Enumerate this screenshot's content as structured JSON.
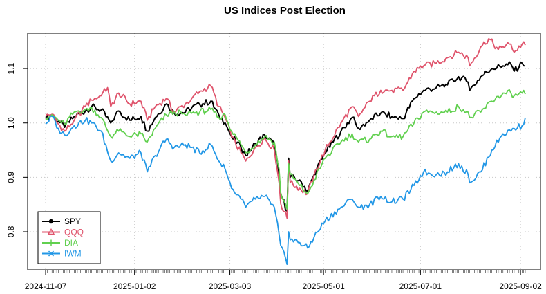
{
  "chart_data": {
    "type": "line",
    "title": "US Indices Post Election",
    "xlabel": "",
    "ylabel": "",
    "x_range": [
      "2024-11-07",
      "2025-09-05"
    ],
    "ylim": [
      0.73,
      1.165
    ],
    "x_ticks": [
      "2024-11-07",
      "2025-01-02",
      "2025-03-03",
      "2025-05-01",
      "2025-07-01",
      "2025-09-02"
    ],
    "y_ticks": [
      0.8,
      0.9,
      1.0,
      1.1
    ],
    "y_tick_labels": [
      "0.8",
      "0.9",
      "1.0",
      "1.1"
    ],
    "grid": true,
    "legend_position": "bottom-left",
    "series": [
      {
        "name": "SPY",
        "color": "#000000",
        "marker": "circle",
        "points": [
          [
            "2024-11-07",
            1.008
          ],
          [
            "2024-11-11",
            1.014
          ],
          [
            "2024-11-15",
            1.003
          ],
          [
            "2024-11-19",
            0.992
          ],
          [
            "2024-11-25",
            1.012
          ],
          [
            "2024-12-02",
            1.022
          ],
          [
            "2024-12-06",
            1.03
          ],
          [
            "2024-12-12",
            1.024
          ],
          [
            "2024-12-18",
            1.0
          ],
          [
            "2024-12-23",
            1.022
          ],
          [
            "2024-12-30",
            1.005
          ],
          [
            "2025-01-06",
            1.012
          ],
          [
            "2025-01-10",
            0.985
          ],
          [
            "2025-01-15",
            1.01
          ],
          [
            "2025-01-22",
            1.035
          ],
          [
            "2025-01-27",
            1.018
          ],
          [
            "2025-02-03",
            1.02
          ],
          [
            "2025-02-07",
            1.028
          ],
          [
            "2025-02-12",
            1.034
          ],
          [
            "2025-02-19",
            1.04
          ],
          [
            "2025-02-24",
            1.015
          ],
          [
            "2025-02-28",
            1.0
          ],
          [
            "2025-03-04",
            0.975
          ],
          [
            "2025-03-10",
            0.955
          ],
          [
            "2025-03-13",
            0.94
          ],
          [
            "2025-03-19",
            0.962
          ],
          [
            "2025-03-25",
            0.978
          ],
          [
            "2025-03-31",
            0.96
          ],
          [
            "2025-04-03",
            0.905
          ],
          [
            "2025-04-04",
            0.87
          ],
          [
            "2025-04-08",
            0.838
          ],
          [
            "2025-04-09",
            0.935
          ],
          [
            "2025-04-10",
            0.9
          ],
          [
            "2025-04-16",
            0.895
          ],
          [
            "2025-04-21",
            0.875
          ],
          [
            "2025-04-25",
            0.905
          ],
          [
            "2025-05-02",
            0.945
          ],
          [
            "2025-05-12",
            0.985
          ],
          [
            "2025-05-19",
            1.01
          ],
          [
            "2025-05-23",
            0.99
          ],
          [
            "2025-05-30",
            1.005
          ],
          [
            "2025-06-06",
            1.018
          ],
          [
            "2025-06-13",
            1.012
          ],
          [
            "2025-06-20",
            1.008
          ],
          [
            "2025-06-27",
            1.045
          ],
          [
            "2025-07-03",
            1.06
          ],
          [
            "2025-07-11",
            1.065
          ],
          [
            "2025-07-18",
            1.07
          ],
          [
            "2025-07-25",
            1.085
          ],
          [
            "2025-07-31",
            1.075
          ],
          [
            "2025-08-01",
            1.06
          ],
          [
            "2025-08-08",
            1.085
          ],
          [
            "2025-08-15",
            1.1
          ],
          [
            "2025-08-22",
            1.105
          ],
          [
            "2025-08-27",
            1.108
          ],
          [
            "2025-08-29",
            1.095
          ],
          [
            "2025-09-03",
            1.11
          ],
          [
            "2025-09-05",
            1.105
          ]
        ]
      },
      {
        "name": "QQQ",
        "color": "#DF536B",
        "marker": "triangle",
        "points": [
          [
            "2024-11-07",
            1.012
          ],
          [
            "2024-11-11",
            1.016
          ],
          [
            "2024-11-15",
            0.998
          ],
          [
            "2024-11-19",
            0.985
          ],
          [
            "2024-11-25",
            1.005
          ],
          [
            "2024-12-02",
            1.03
          ],
          [
            "2024-12-06",
            1.042
          ],
          [
            "2024-12-12",
            1.05
          ],
          [
            "2024-12-16",
            1.065
          ],
          [
            "2024-12-18",
            1.03
          ],
          [
            "2024-12-23",
            1.055
          ],
          [
            "2024-12-30",
            1.035
          ],
          [
            "2025-01-06",
            1.04
          ],
          [
            "2025-01-10",
            1.005
          ],
          [
            "2025-01-15",
            1.03
          ],
          [
            "2025-01-22",
            1.045
          ],
          [
            "2025-01-27",
            1.02
          ],
          [
            "2025-02-03",
            1.035
          ],
          [
            "2025-02-07",
            1.045
          ],
          [
            "2025-02-12",
            1.058
          ],
          [
            "2025-02-19",
            1.068
          ],
          [
            "2025-02-24",
            1.03
          ],
          [
            "2025-02-28",
            1.01
          ],
          [
            "2025-03-04",
            0.975
          ],
          [
            "2025-03-10",
            0.945
          ],
          [
            "2025-03-13",
            0.93
          ],
          [
            "2025-03-19",
            0.955
          ],
          [
            "2025-03-25",
            0.972
          ],
          [
            "2025-03-31",
            0.95
          ],
          [
            "2025-04-03",
            0.89
          ],
          [
            "2025-04-04",
            0.852
          ],
          [
            "2025-04-08",
            0.825
          ],
          [
            "2025-04-09",
            0.93
          ],
          [
            "2025-04-10",
            0.89
          ],
          [
            "2025-04-16",
            0.88
          ],
          [
            "2025-04-21",
            0.87
          ],
          [
            "2025-04-25",
            0.905
          ],
          [
            "2025-05-02",
            0.95
          ],
          [
            "2025-05-12",
            1.0
          ],
          [
            "2025-05-19",
            1.03
          ],
          [
            "2025-05-23",
            1.012
          ],
          [
            "2025-05-30",
            1.04
          ],
          [
            "2025-06-06",
            1.06
          ],
          [
            "2025-06-13",
            1.06
          ],
          [
            "2025-06-20",
            1.06
          ],
          [
            "2025-06-27",
            1.095
          ],
          [
            "2025-07-03",
            1.105
          ],
          [
            "2025-07-11",
            1.11
          ],
          [
            "2025-07-18",
            1.12
          ],
          [
            "2025-07-25",
            1.13
          ],
          [
            "2025-07-31",
            1.12
          ],
          [
            "2025-08-01",
            1.105
          ],
          [
            "2025-08-08",
            1.14
          ],
          [
            "2025-08-13",
            1.155
          ],
          [
            "2025-08-19",
            1.135
          ],
          [
            "2025-08-22",
            1.14
          ],
          [
            "2025-08-27",
            1.145
          ],
          [
            "2025-08-29",
            1.13
          ],
          [
            "2025-09-03",
            1.145
          ],
          [
            "2025-09-05",
            1.143
          ]
        ]
      },
      {
        "name": "DIA",
        "color": "#61D04F",
        "marker": "plus",
        "points": [
          [
            "2024-11-07",
            1.01
          ],
          [
            "2024-11-11",
            1.015
          ],
          [
            "2024-11-15",
            1.005
          ],
          [
            "2024-11-19",
            0.998
          ],
          [
            "2024-11-25",
            1.02
          ],
          [
            "2024-12-02",
            1.025
          ],
          [
            "2024-12-06",
            1.028
          ],
          [
            "2024-12-12",
            1.01
          ],
          [
            "2024-12-18",
            0.975
          ],
          [
            "2024-12-23",
            0.985
          ],
          [
            "2024-12-30",
            0.975
          ],
          [
            "2025-01-06",
            0.98
          ],
          [
            "2025-01-10",
            0.965
          ],
          [
            "2025-01-15",
            0.99
          ],
          [
            "2025-01-22",
            1.015
          ],
          [
            "2025-01-27",
            1.02
          ],
          [
            "2025-02-03",
            1.015
          ],
          [
            "2025-02-07",
            1.018
          ],
          [
            "2025-02-12",
            1.02
          ],
          [
            "2025-02-19",
            1.025
          ],
          [
            "2025-02-24",
            1.01
          ],
          [
            "2025-02-28",
            1.015
          ],
          [
            "2025-03-04",
            0.985
          ],
          [
            "2025-03-10",
            0.96
          ],
          [
            "2025-03-13",
            0.945
          ],
          [
            "2025-03-19",
            0.96
          ],
          [
            "2025-03-25",
            0.975
          ],
          [
            "2025-03-31",
            0.965
          ],
          [
            "2025-04-03",
            0.915
          ],
          [
            "2025-04-04",
            0.872
          ],
          [
            "2025-04-08",
            0.842
          ],
          [
            "2025-04-09",
            0.925
          ],
          [
            "2025-04-10",
            0.905
          ],
          [
            "2025-04-16",
            0.885
          ],
          [
            "2025-04-21",
            0.87
          ],
          [
            "2025-04-25",
            0.895
          ],
          [
            "2025-05-02",
            0.935
          ],
          [
            "2025-05-12",
            0.965
          ],
          [
            "2025-05-19",
            0.98
          ],
          [
            "2025-05-23",
            0.965
          ],
          [
            "2025-05-30",
            0.97
          ],
          [
            "2025-06-06",
            0.985
          ],
          [
            "2025-06-13",
            0.975
          ],
          [
            "2025-06-20",
            0.975
          ],
          [
            "2025-06-27",
            1.0
          ],
          [
            "2025-07-03",
            1.02
          ],
          [
            "2025-07-11",
            1.02
          ],
          [
            "2025-07-18",
            1.02
          ],
          [
            "2025-07-25",
            1.03
          ],
          [
            "2025-07-31",
            1.02
          ],
          [
            "2025-08-01",
            1.01
          ],
          [
            "2025-08-08",
            1.02
          ],
          [
            "2025-08-15",
            1.04
          ],
          [
            "2025-08-22",
            1.055
          ],
          [
            "2025-08-27",
            1.055
          ],
          [
            "2025-08-29",
            1.05
          ],
          [
            "2025-09-03",
            1.055
          ],
          [
            "2025-09-05",
            1.053
          ]
        ]
      },
      {
        "name": "IWM",
        "color": "#2297E6",
        "marker": "cross",
        "points": [
          [
            "2024-11-07",
            0.998
          ],
          [
            "2024-11-11",
            1.012
          ],
          [
            "2024-11-15",
            0.99
          ],
          [
            "2024-11-19",
            0.978
          ],
          [
            "2024-11-25",
            0.995
          ],
          [
            "2024-12-02",
            1.005
          ],
          [
            "2024-12-06",
            1.0
          ],
          [
            "2024-12-12",
            0.985
          ],
          [
            "2024-12-18",
            0.93
          ],
          [
            "2024-12-23",
            0.945
          ],
          [
            "2024-12-30",
            0.935
          ],
          [
            "2025-01-06",
            0.945
          ],
          [
            "2025-01-10",
            0.91
          ],
          [
            "2025-01-15",
            0.94
          ],
          [
            "2025-01-22",
            0.97
          ],
          [
            "2025-01-27",
            0.955
          ],
          [
            "2025-02-03",
            0.96
          ],
          [
            "2025-02-07",
            0.955
          ],
          [
            "2025-02-12",
            0.945
          ],
          [
            "2025-02-19",
            0.96
          ],
          [
            "2025-02-24",
            0.93
          ],
          [
            "2025-02-28",
            0.915
          ],
          [
            "2025-03-04",
            0.88
          ],
          [
            "2025-03-10",
            0.86
          ],
          [
            "2025-03-13",
            0.845
          ],
          [
            "2025-03-19",
            0.86
          ],
          [
            "2025-03-25",
            0.865
          ],
          [
            "2025-03-31",
            0.845
          ],
          [
            "2025-04-03",
            0.795
          ],
          [
            "2025-04-04",
            0.775
          ],
          [
            "2025-04-08",
            0.74
          ],
          [
            "2025-04-09",
            0.8
          ],
          [
            "2025-04-10",
            0.785
          ],
          [
            "2025-04-16",
            0.78
          ],
          [
            "2025-04-21",
            0.77
          ],
          [
            "2025-04-25",
            0.79
          ],
          [
            "2025-05-02",
            0.82
          ],
          [
            "2025-05-12",
            0.845
          ],
          [
            "2025-05-19",
            0.86
          ],
          [
            "2025-05-23",
            0.845
          ],
          [
            "2025-05-30",
            0.85
          ],
          [
            "2025-06-06",
            0.865
          ],
          [
            "2025-06-13",
            0.855
          ],
          [
            "2025-06-20",
            0.86
          ],
          [
            "2025-06-27",
            0.885
          ],
          [
            "2025-07-03",
            0.91
          ],
          [
            "2025-07-11",
            0.905
          ],
          [
            "2025-07-18",
            0.91
          ],
          [
            "2025-07-25",
            0.925
          ],
          [
            "2025-07-31",
            0.905
          ],
          [
            "2025-08-01",
            0.89
          ],
          [
            "2025-08-08",
            0.91
          ],
          [
            "2025-08-15",
            0.95
          ],
          [
            "2025-08-22",
            0.98
          ],
          [
            "2025-08-27",
            0.985
          ],
          [
            "2025-08-29",
            0.99
          ],
          [
            "2025-09-03",
            0.995
          ],
          [
            "2025-09-05",
            1.01
          ]
        ]
      }
    ]
  }
}
